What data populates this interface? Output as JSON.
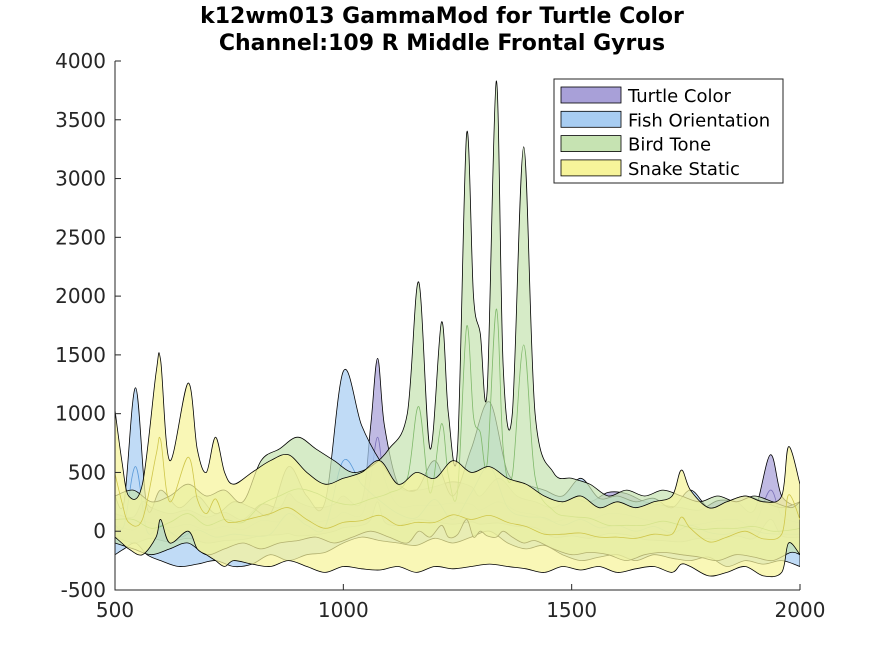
{
  "chart_data": {
    "type": "area",
    "title_line1": "k12wm013 GammaMod for Turtle Color",
    "title_line2": "Channel:109 R Middle Frontal Gyrus",
    "xlabel": "",
    "ylabel": "",
    "xlim": [
      500,
      2000
    ],
    "ylim": [
      -500,
      4000
    ],
    "xticks": [
      500,
      1000,
      1500,
      2000
    ],
    "yticks": [
      -500,
      0,
      500,
      1000,
      1500,
      2000,
      2500,
      3000,
      3500,
      4000
    ],
    "xtick_labels": [
      "500",
      "1000",
      "1500",
      "2000"
    ],
    "ytick_labels": [
      "-500",
      "0",
      "500",
      "1000",
      "1500",
      "2000",
      "2500",
      "3000",
      "3500",
      "4000"
    ],
    "grid": false,
    "legend_position": "top-right",
    "series": [
      {
        "name": "Turtle Color",
        "fill": "#a8a0d8",
        "line": "#7a70b8",
        "x": [
          500,
          540,
          560,
          580,
          620,
          660,
          700,
          740,
          780,
          820,
          860,
          880,
          900,
          940,
          980,
          1000,
          1040,
          1060,
          1075,
          1090,
          1120,
          1160,
          1200,
          1240,
          1280,
          1300,
          1340,
          1380,
          1420,
          1460,
          1500,
          1540,
          1580,
          1620,
          1660,
          1700,
          1740,
          1780,
          1820,
          1860,
          1900,
          1935,
          1960,
          2000
        ],
        "upper": [
          150,
          120,
          250,
          200,
          150,
          180,
          120,
          160,
          100,
          230,
          200,
          320,
          250,
          200,
          230,
          300,
          250,
          900,
          1470,
          900,
          400,
          350,
          380,
          420,
          380,
          300,
          450,
          300,
          250,
          200,
          280,
          250,
          330,
          320,
          250,
          220,
          200,
          180,
          260,
          250,
          180,
          650,
          300,
          200
        ],
        "lower": [
          -50,
          -100,
          -80,
          -60,
          -90,
          -60,
          -100,
          -80,
          -70,
          -40,
          -30,
          -20,
          -40,
          -30,
          0,
          30,
          50,
          100,
          250,
          80,
          50,
          100,
          80,
          60,
          80,
          60,
          70,
          40,
          30,
          -50,
          -40,
          -60,
          -20,
          -30,
          -70,
          -80,
          -90,
          -60,
          -70,
          -40,
          -60,
          100,
          -40,
          -50
        ],
        "mean": [
          50,
          10,
          80,
          70,
          30,
          60,
          10,
          40,
          15,
          90,
          80,
          150,
          100,
          80,
          110,
          160,
          140,
          450,
          800,
          450,
          220,
          220,
          220,
          240,
          230,
          180,
          250,
          170,
          140,
          80,
          120,
          100,
          150,
          140,
          100,
          70,
          60,
          60,
          90,
          100,
          60,
          350,
          130,
          70
        ]
      },
      {
        "name": "Fish Orientation",
        "fill": "#a8cdf2",
        "line": "#5a9ad8",
        "x": [
          500,
          520,
          545,
          570,
          600,
          640,
          680,
          720,
          760,
          800,
          840,
          880,
          920,
          960,
          1000,
          1040,
          1080,
          1120,
          1160,
          1200,
          1240,
          1280,
          1320,
          1360,
          1400,
          1440,
          1480,
          1520,
          1560,
          1600,
          1640,
          1680,
          1720,
          1760,
          1800,
          1840,
          1880,
          1920,
          1960,
          2000
        ],
        "upper": [
          300,
          250,
          1220,
          200,
          350,
          200,
          300,
          150,
          250,
          200,
          150,
          550,
          300,
          250,
          1360,
          900,
          600,
          400,
          350,
          600,
          300,
          700,
          1100,
          500,
          400,
          350,
          300,
          450,
          280,
          300,
          250,
          280,
          200,
          350,
          200,
          250,
          300,
          250,
          200,
          250
        ],
        "lower": [
          -200,
          -150,
          -100,
          -200,
          -250,
          -300,
          -280,
          -250,
          -300,
          -280,
          -200,
          -250,
          -200,
          -180,
          -100,
          -50,
          -80,
          -100,
          -120,
          -60,
          -100,
          -50,
          0,
          -100,
          -150,
          -120,
          -200,
          -250,
          -220,
          -200,
          -250,
          -200,
          -230,
          -250,
          -220,
          -300,
          -250,
          -280,
          -250,
          -300
        ],
        "mean": [
          50,
          50,
          550,
          0,
          50,
          -50,
          10,
          -50,
          -25,
          -40,
          -25,
          150,
          50,
          35,
          600,
          400,
          260,
          150,
          115,
          270,
          100,
          325,
          550,
          200,
          125,
          115,
          50,
          100,
          30,
          50,
          0,
          40,
          -15,
          50,
          -10,
          -25,
          25,
          -15,
          -25,
          -25
        ]
      },
      {
        "name": "Bird Tone",
        "fill": "#c6e3b2",
        "line": "#7fb86a",
        "x": [
          500,
          540,
          580,
          620,
          660,
          700,
          740,
          780,
          820,
          860,
          900,
          940,
          980,
          1020,
          1060,
          1100,
          1140,
          1165,
          1190,
          1215,
          1230,
          1250,
          1270,
          1285,
          1300,
          1315,
          1335,
          1350,
          1370,
          1395,
          1420,
          1460,
          1500,
          1540,
          1580,
          1620,
          1660,
          1700,
          1740,
          1780,
          1820,
          1860,
          1900,
          1940,
          1980,
          2000
        ],
        "upper": [
          300,
          350,
          250,
          300,
          400,
          300,
          350,
          250,
          600,
          700,
          800,
          700,
          600,
          500,
          550,
          700,
          1000,
          2120,
          700,
          1780,
          1000,
          700,
          3380,
          2000,
          1680,
          1200,
          3830,
          1400,
          1000,
          3270,
          1000,
          500,
          450,
          400,
          300,
          350,
          300,
          350,
          300,
          250,
          300,
          250,
          300,
          250,
          200,
          250
        ],
        "lower": [
          -100,
          -150,
          -200,
          -150,
          -100,
          -200,
          -150,
          -100,
          -150,
          -100,
          -80,
          -50,
          -100,
          -50,
          0,
          -50,
          -100,
          0,
          -50,
          50,
          -50,
          -30,
          100,
          -50,
          0,
          -40,
          -50,
          0,
          -50,
          -100,
          -80,
          -150,
          -200,
          -180,
          -200,
          -250,
          -200,
          -180,
          -200,
          -220,
          -250,
          -200,
          -220,
          -250,
          -180,
          -200
        ],
        "mean": [
          100,
          100,
          25,
          75,
          150,
          50,
          100,
          75,
          225,
          300,
          360,
          325,
          250,
          225,
          275,
          325,
          450,
          1060,
          325,
          915,
          475,
          335,
          1740,
          975,
          840,
          580,
          1890,
          700,
          475,
          1585,
          460,
          175,
          125,
          110,
          50,
          50,
          50,
          85,
          50,
          15,
          25,
          25,
          40,
          0,
          10,
          25
        ]
      },
      {
        "name": "Snake Static",
        "fill": "#f7f49a",
        "line": "#cfc64a",
        "x": [
          500,
          515,
          530,
          560,
          590,
          600,
          620,
          660,
          680,
          700,
          720,
          740,
          760,
          800,
          840,
          880,
          920,
          960,
          1000,
          1040,
          1080,
          1120,
          1160,
          1200,
          1240,
          1280,
          1320,
          1360,
          1400,
          1440,
          1480,
          1520,
          1560,
          1600,
          1640,
          1680,
          1720,
          1740,
          1760,
          1800,
          1840,
          1880,
          1920,
          1960,
          1975,
          2000
        ],
        "upper": [
          1030,
          600,
          300,
          400,
          1350,
          1450,
          600,
          1260,
          700,
          500,
          800,
          500,
          400,
          500,
          600,
          650,
          500,
          400,
          450,
          500,
          600,
          400,
          500,
          450,
          600,
          500,
          550,
          450,
          400,
          300,
          250,
          300,
          200,
          250,
          200,
          250,
          300,
          520,
          350,
          200,
          250,
          300,
          250,
          300,
          720,
          400
        ],
        "lower": [
          -50,
          -100,
          -150,
          -200,
          -50,
          100,
          -100,
          0,
          -150,
          -200,
          -250,
          -300,
          -250,
          -280,
          -300,
          -250,
          -300,
          -350,
          -300,
          -320,
          -330,
          -300,
          -350,
          -300,
          -320,
          -300,
          -280,
          -300,
          -320,
          -350,
          -300,
          -330,
          -300,
          -350,
          -320,
          -300,
          -350,
          -280,
          -300,
          -380,
          -350,
          -300,
          -380,
          -350,
          -100,
          -200
        ],
        "mean": [
          490,
          250,
          75,
          100,
          650,
          775,
          250,
          630,
          275,
          150,
          275,
          100,
          75,
          110,
          150,
          200,
          100,
          25,
          75,
          90,
          135,
          50,
          75,
          75,
          140,
          100,
          135,
          75,
          40,
          -25,
          -25,
          -15,
          -50,
          -50,
          -60,
          -25,
          -25,
          120,
          25,
          -90,
          -50,
          0,
          -65,
          -25,
          310,
          100
        ]
      }
    ]
  }
}
